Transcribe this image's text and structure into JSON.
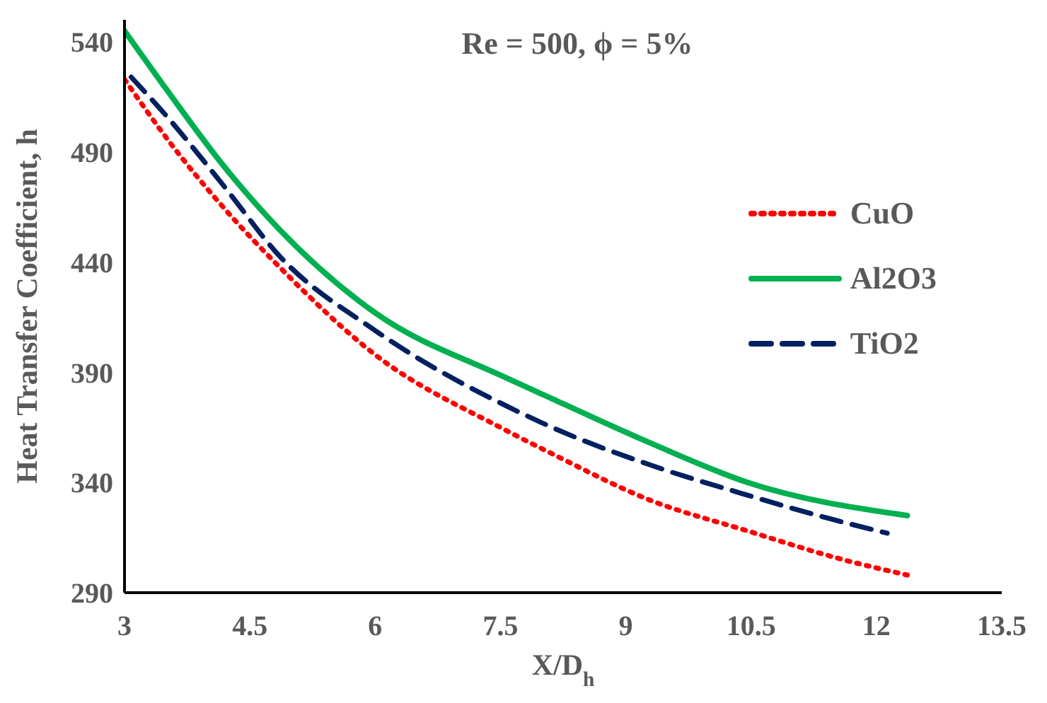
{
  "chart_data": {
    "type": "line",
    "title": "Re = 500, ϕ = 5%",
    "xlabel": "X/D$_{h}$",
    "ylabel": "Heat Transfer Coefficient, h",
    "xlim": [
      3,
      13.5
    ],
    "xticks": [
      3,
      4.5,
      6,
      7.5,
      9,
      10.5,
      12,
      13.5
    ],
    "ylim": [
      290,
      550
    ],
    "yticks": [
      290,
      340,
      390,
      440,
      490,
      540
    ],
    "legend": "right",
    "marker": "none",
    "series": [
      {
        "name": "CuO",
        "color": "#ff0000",
        "line_style": "dotted",
        "x": [
          3,
          3.51,
          4.18,
          4.85,
          6,
          7.55,
          8.12,
          9.29,
          10.46,
          11.6,
          12.37
        ],
        "values": [
          523,
          496,
          465,
          438,
          398,
          364,
          353,
          332,
          318,
          305,
          298
        ]
      },
      {
        "name": "Al2O3",
        "color": "#00b050",
        "line_style": "solid",
        "x": [
          3,
          3.51,
          4.18,
          4.85,
          6,
          7.54,
          8.12,
          9.29,
          10.46,
          12.37
        ],
        "values": [
          545,
          518,
          484,
          455,
          417,
          388,
          378,
          358,
          340,
          325
        ]
      },
      {
        "name": "TiO2",
        "color": "#002060",
        "line_style": "dashed",
        "x": [
          3.08,
          3.51,
          4.18,
          4.85,
          6,
          7.72,
          8.24,
          9.29,
          10.39,
          11.5,
          12.13
        ],
        "values": [
          524,
          506,
          475,
          443,
          409,
          372,
          363,
          348,
          335,
          323,
          317
        ]
      }
    ]
  }
}
